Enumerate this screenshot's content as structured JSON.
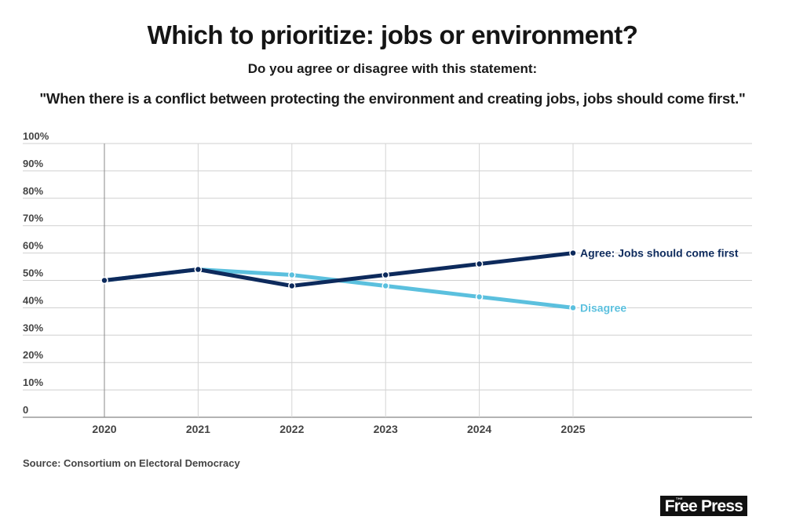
{
  "header": {
    "title": "Which to prioritize: jobs or environment?",
    "subtitle": "Do you agree or disagree with this statement:",
    "statement": "\"When there is a conflict between protecting the environment and creating jobs, jobs should come first.\""
  },
  "footer": {
    "source": "Source: Consortium on Electoral Democracy",
    "logo_small": "THE",
    "logo_name": "Free Press"
  },
  "chart_data": {
    "type": "line",
    "title": "Which to prioritize: jobs or environment?",
    "xlabel": "",
    "ylabel": "",
    "x": [
      "2020",
      "2021",
      "2022",
      "2023",
      "2024",
      "2025"
    ],
    "ylim": [
      0,
      100
    ],
    "yticks": [
      0,
      10,
      20,
      30,
      40,
      50,
      60,
      70,
      80,
      90,
      100
    ],
    "ytick_labels": [
      "0",
      "10%",
      "20%",
      "30%",
      "40%",
      "50%",
      "60%",
      "70%",
      "80%",
      "90%",
      "100%"
    ],
    "grid": true,
    "legend": "inline-right",
    "series": [
      {
        "name": "Agree: Jobs should come first",
        "color": "#0d2a5c",
        "values": [
          50,
          54,
          48,
          52,
          56,
          60
        ]
      },
      {
        "name": "Disagree",
        "color": "#5bc0de",
        "values": [
          50,
          54,
          52,
          48,
          44,
          40
        ]
      }
    ]
  }
}
